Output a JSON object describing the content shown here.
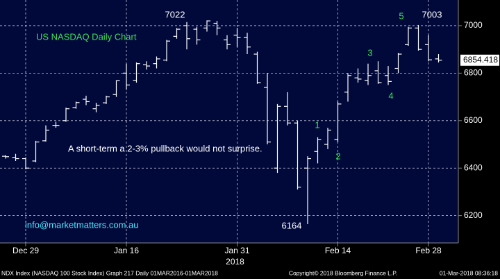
{
  "chart_data": {
    "type": "ohlc",
    "title": "US NASDAQ Daily Chart",
    "annotations": [
      "7022",
      "7003",
      "6164",
      "1",
      "2",
      "3",
      "4",
      "5",
      "A short-term a 2-3% pullback would not surprise.",
      "info@marketmatters.com.au"
    ],
    "categories": [
      null,
      null,
      "Dec 29",
      null,
      null,
      null,
      null,
      null,
      null,
      null,
      null,
      null,
      "Jan 16",
      null,
      null,
      null,
      null,
      null,
      null,
      null,
      null,
      null,
      null,
      "Jan 31",
      null,
      null,
      null,
      null,
      null,
      null,
      null,
      null,
      null,
      "Feb 14",
      null,
      null,
      null,
      null,
      null,
      null,
      null,
      null,
      "Feb 28",
      null
    ],
    "x_year_label": "2018",
    "series": [
      {
        "color": "#ffffff",
        "open": [
          6450,
          6445,
          6440,
          6430,
          6515,
          6580,
          6600,
          6655,
          6690,
          6650,
          6675,
          6710,
          6800,
          6770,
          6835,
          6840,
          6855,
          6955,
          7000,
          6985,
          6990,
          7010,
          6940,
          6960,
          6950,
          6880,
          6740,
          6400,
          6660,
          6590,
          6400,
          6470,
          6500,
          6520,
          6720,
          6780,
          6770,
          6810,
          6790,
          6820,
          6920,
          6990,
          6920,
          6860
        ],
        "high": [
          6455,
          6460,
          6445,
          6515,
          6580,
          6595,
          6655,
          6680,
          6705,
          6675,
          6705,
          6770,
          6840,
          6845,
          6850,
          6870,
          6940,
          6990,
          7015,
          6995,
          7022,
          7020,
          6960,
          6990,
          6970,
          6890,
          6800,
          6670,
          6720,
          6600,
          6450,
          6530,
          6570,
          6680,
          6800,
          6820,
          6840,
          6850,
          6830,
          6885,
          6995,
          7003,
          6960,
          6880
        ],
        "low": [
          6440,
          6430,
          6395,
          6425,
          6512,
          6570,
          6595,
          6650,
          6665,
          6635,
          6670,
          6700,
          6730,
          6760,
          6815,
          6820,
          6850,
          6945,
          6900,
          6920,
          6975,
          6960,
          6900,
          6910,
          6880,
          6755,
          6500,
          6380,
          6580,
          6310,
          6164,
          6420,
          6480,
          6510,
          6680,
          6760,
          6750,
          6755,
          6750,
          6800,
          6915,
          6895,
          6850,
          6845
        ],
        "close": [
          6448,
          6440,
          6400,
          6510,
          6560,
          6580,
          6650,
          6676,
          6680,
          6665,
          6700,
          6768,
          6750,
          6840,
          6830,
          6860,
          6935,
          6985,
          6945,
          6940,
          7020,
          6990,
          6920,
          6950,
          6910,
          6760,
          6510,
          6660,
          6590,
          6320,
          6440,
          6520,
          6560,
          6670,
          6790,
          6775,
          6790,
          6760,
          6765,
          6880,
          6990,
          6900,
          6856,
          6854.418
        ]
      }
    ],
    "last_value": 6854.418,
    "ylim": [
      6085,
      7108
    ],
    "yticks": [
      6200,
      6400,
      6600,
      6800,
      7000
    ],
    "grid": true,
    "footer": [
      "NDX Index (NASDAQ 100 Stock Index) Graph 217  Daily 01MAR2016-01MAR2018",
      "Copyright© 2018 Bloomberg Finance L.P.",
      "01-Mar-2018 08:36:18"
    ]
  }
}
